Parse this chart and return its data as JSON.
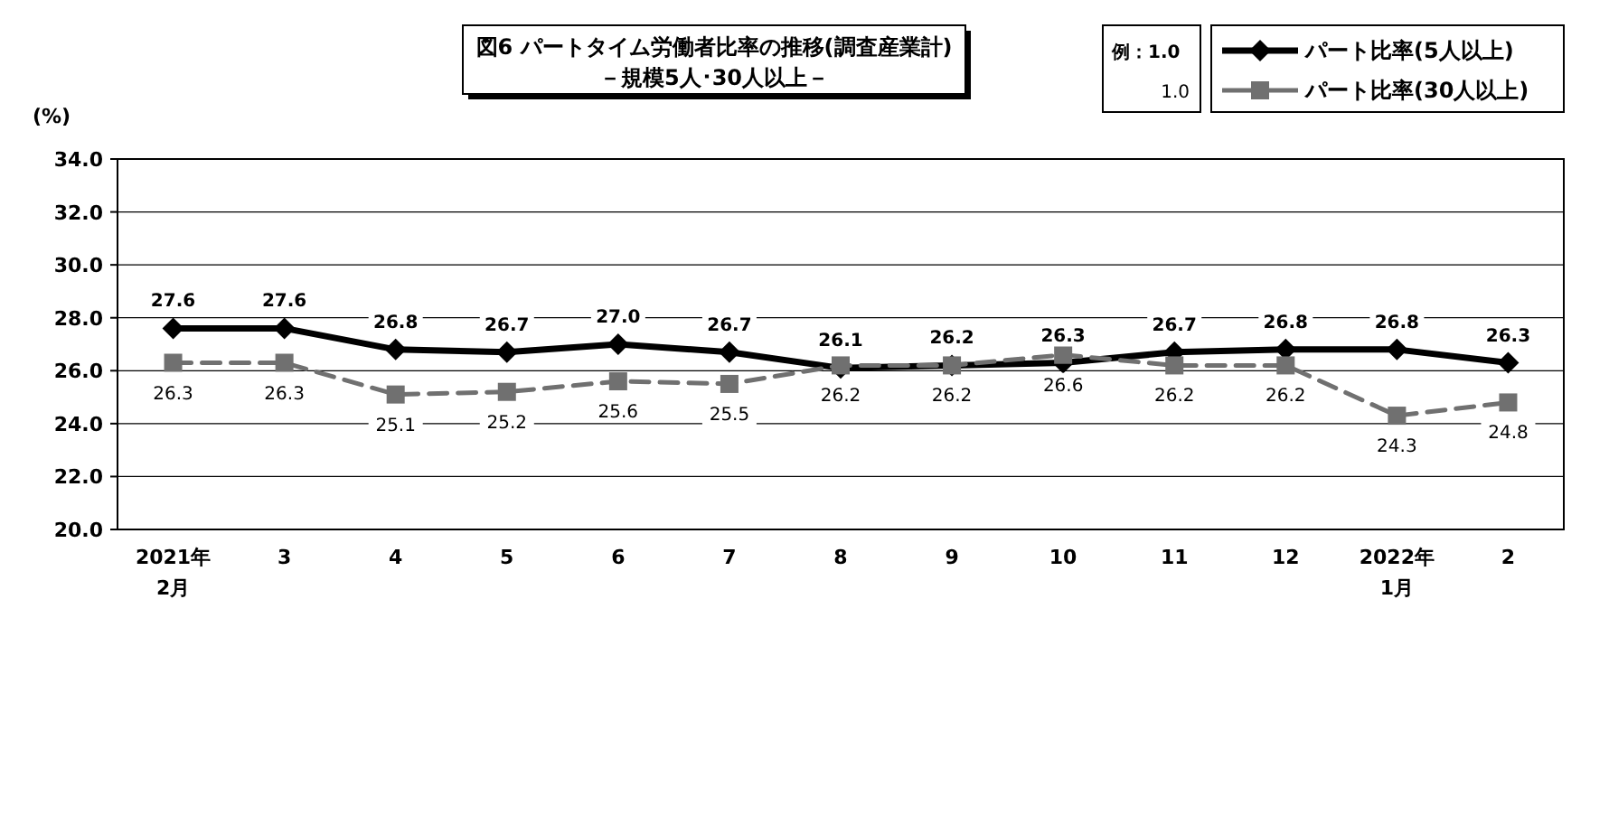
{
  "chart_data": {
    "type": "line",
    "title": "図6  パートタイム労働者比率の推移(調査産業計)",
    "subtitle": "－規模5人･30人以上－",
    "ylabel": "(%)",
    "categories": [
      "2021年\n2月",
      "3",
      "4",
      "5",
      "6",
      "7",
      "8",
      "9",
      "10",
      "11",
      "12",
      "2022年\n1月",
      "2"
    ],
    "series": [
      {
        "name": "パート比率(5人以上)",
        "color": "#000000",
        "marker": "diamond",
        "line_style": "solid",
        "values": [
          27.6,
          27.6,
          26.8,
          26.7,
          27.0,
          26.7,
          26.1,
          26.2,
          26.3,
          26.7,
          26.8,
          26.8,
          26.3
        ],
        "value_labels": [
          "27.6",
          "27.6",
          "26.8",
          "26.7",
          "27.0",
          "26.7",
          "26.1",
          "26.2",
          "26.3",
          "26.7",
          "26.8",
          "26.8",
          "26.3"
        ]
      },
      {
        "name": "パート比率(30人以上)",
        "color": "#707070",
        "marker": "square",
        "line_style": "dashed",
        "values": [
          26.3,
          26.3,
          25.1,
          25.2,
          25.6,
          25.5,
          26.2,
          26.2,
          26.6,
          26.2,
          26.2,
          24.3,
          24.8
        ],
        "value_labels": [
          "26.3",
          "26.3",
          "25.1",
          "25.2",
          "25.6",
          "25.5",
          "26.2",
          "26.2",
          "26.6",
          "26.2",
          "26.2",
          "24.3",
          "24.8"
        ]
      }
    ],
    "ylim": [
      20,
      34
    ],
    "yticks": [
      {
        "value": 20,
        "label": "20.0"
      },
      {
        "value": 22,
        "label": "22.0"
      },
      {
        "value": 24,
        "label": "24.0"
      },
      {
        "value": 26,
        "label": "26.0"
      },
      {
        "value": 28,
        "label": "28.0"
      },
      {
        "value": 30,
        "label": "30.0"
      },
      {
        "value": 32,
        "label": "32.0"
      },
      {
        "value": 34,
        "label": "34.0"
      }
    ],
    "grid": "y",
    "legend": "top right",
    "annotations": [
      "例：1.0",
      "1.0"
    ]
  }
}
